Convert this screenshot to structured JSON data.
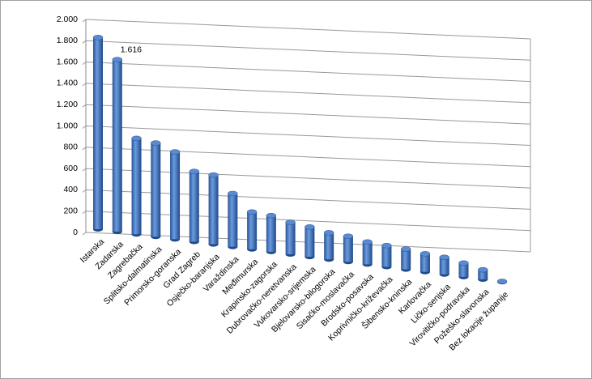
{
  "chart_data": {
    "type": "bar",
    "style": "3d-cylinder",
    "color": "#4a7cc4",
    "categories": [
      "Istarska",
      "Zadarska",
      "Zagrebačka",
      "Splitsko-dalmatinska",
      "Primorsko-goranska",
      "Grad Zagreb",
      "Osječko-baranjska",
      "Varaždinska",
      "Međimurska",
      "Krapinsko-zagorska",
      "Dubrovačko-neretvanska",
      "Vukovarsko-srijemska",
      "Bjelovarsko-bilogorska",
      "Sisačko-moslavačka",
      "Brodsko-posavska",
      "Koprivničko-križevačka",
      "Šibensko-kninska",
      "Karlovačka",
      "Ličko-senjska",
      "Virovitičko-podravska",
      "Požeško-slavonska",
      "Bez lokacije županije"
    ],
    "values": [
      1800,
      1616,
      900,
      880,
      820,
      660,
      650,
      500,
      350,
      340,
      300,
      280,
      250,
      240,
      210,
      200,
      190,
      170,
      160,
      130,
      90,
      5
    ],
    "value_labels": [
      null,
      "1.616",
      null,
      null,
      null,
      null,
      null,
      null,
      null,
      null,
      null,
      null,
      null,
      null,
      null,
      null,
      null,
      null,
      null,
      null,
      null,
      null
    ],
    "ylim": [
      0,
      2000
    ],
    "yticks": [
      0,
      200,
      400,
      600,
      800,
      {
        "value": 1000,
        "label": "1.000"
      },
      {
        "value": 1200,
        "label": "1.200"
      },
      {
        "value": 1400,
        "label": "1.400"
      },
      {
        "value": 1600,
        "label": "1.600"
      },
      {
        "value": 1800,
        "label": "1.800"
      },
      {
        "value": 2000,
        "label": "2.000"
      }
    ],
    "grid": true
  }
}
